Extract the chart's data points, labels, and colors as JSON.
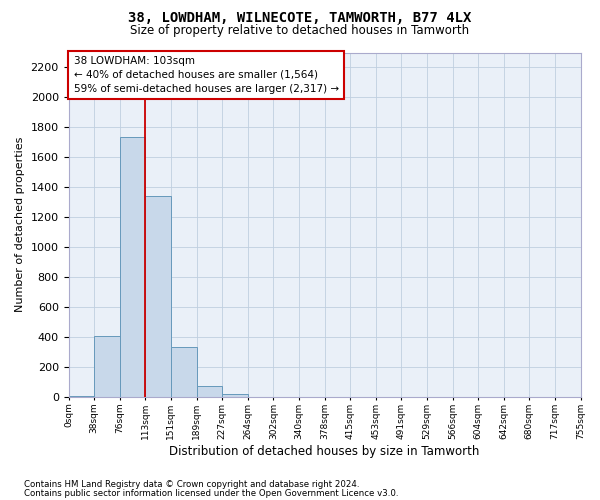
{
  "title1": "38, LOWDHAM, WILNECOTE, TAMWORTH, B77 4LX",
  "title2": "Size of property relative to detached houses in Tamworth",
  "xlabel": "Distribution of detached houses by size in Tamworth",
  "ylabel": "Number of detached properties",
  "bar_values": [
    10,
    407,
    1733,
    1340,
    337,
    75,
    22,
    3,
    0,
    0,
    0,
    0,
    0,
    0,
    0,
    0,
    0,
    0,
    0,
    0
  ],
  "bar_color": "#c8d8ea",
  "bar_edge_color": "#6699bb",
  "vline_color": "#cc0000",
  "vline_x": 2.5,
  "annotation_line1": "38 LOWDHAM: 103sqm",
  "annotation_line2": "← 40% of detached houses are smaller (1,564)",
  "annotation_line3": "59% of semi-detached houses are larger (2,317) →",
  "annotation_box_edge": "#cc0000",
  "ylim": [
    0,
    2300
  ],
  "yticks": [
    0,
    200,
    400,
    600,
    800,
    1000,
    1200,
    1400,
    1600,
    1800,
    2000,
    2200
  ],
  "x_labels": [
    "0sqm",
    "38sqm",
    "76sqm",
    "113sqm",
    "151sqm",
    "189sqm",
    "227sqm",
    "264sqm",
    "302sqm",
    "340sqm",
    "378sqm",
    "415sqm",
    "453sqm",
    "491sqm",
    "529sqm",
    "566sqm",
    "604sqm",
    "642sqm",
    "680sqm",
    "717sqm",
    "755sqm"
  ],
  "footer1": "Contains HM Land Registry data © Crown copyright and database right 2024.",
  "footer2": "Contains public sector information licensed under the Open Government Licence v3.0.",
  "bg_color": "#eaf0f8",
  "grid_color": "#c0cfe0"
}
